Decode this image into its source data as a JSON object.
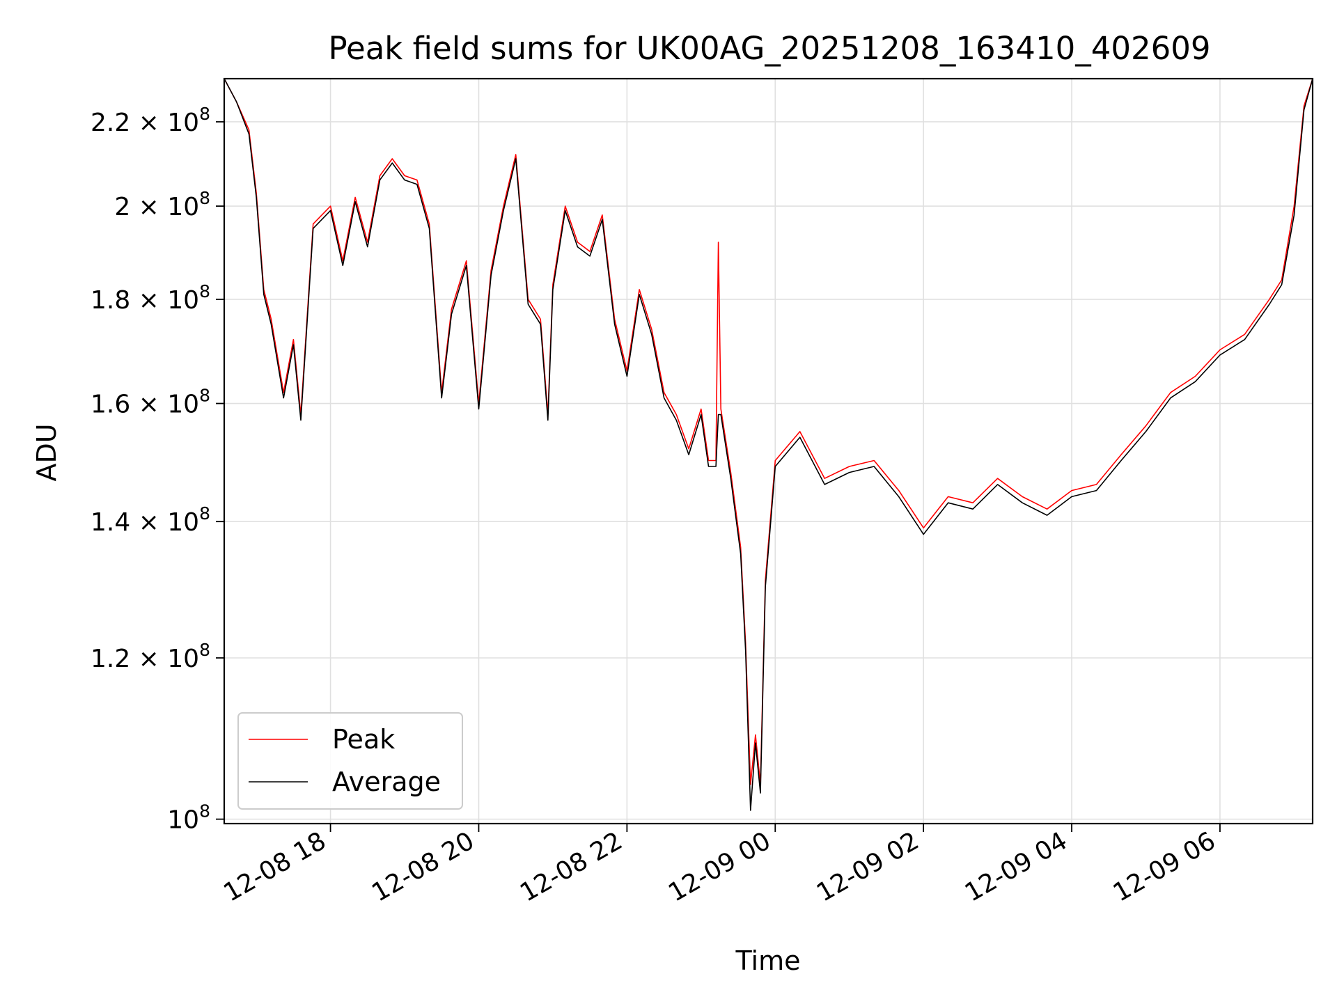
{
  "chart_data": {
    "type": "line",
    "title": "Peak field sums for UK00AG_20251208_163410_402609",
    "xlabel": "Time",
    "ylabel": "ADU",
    "yscale": "log",
    "ylim": [
      99500000,
      231000000
    ],
    "xlim": [
      "2025-12-08 16:34",
      "2025-12-09 07:15"
    ],
    "grid": true,
    "legend_position": "lower-left",
    "x_ticks": [
      {
        "value": "2025-12-08 18:00",
        "label": "12-08 18"
      },
      {
        "value": "2025-12-08 20:00",
        "label": "12-08 20"
      },
      {
        "value": "2025-12-08 22:00",
        "label": "12-08 22"
      },
      {
        "value": "2025-12-09 00:00",
        "label": "12-09 00"
      },
      {
        "value": "2025-12-09 02:00",
        "label": "12-09 02"
      },
      {
        "value": "2025-12-09 04:00",
        "label": "12-09 04"
      },
      {
        "value": "2025-12-09 06:00",
        "label": "12-09 06"
      }
    ],
    "y_ticks": [
      {
        "value": 100000000,
        "mantissa": "",
        "exponent": "8"
      },
      {
        "value": 120000000,
        "mantissa": "1.2",
        "exponent": "8"
      },
      {
        "value": 140000000,
        "mantissa": "1.4",
        "exponent": "8"
      },
      {
        "value": 160000000,
        "mantissa": "1.6",
        "exponent": "8"
      },
      {
        "value": 180000000,
        "mantissa": "1.8",
        "exponent": "8"
      },
      {
        "value": 200000000,
        "mantissa": "2",
        "exponent": "8"
      },
      {
        "value": 220000000,
        "mantissa": "2.2",
        "exponent": "8"
      }
    ],
    "series": [
      {
        "name": "Peak",
        "color": "#ff0000",
        "x": [
          "2025-12-08 16:34",
          "2025-12-08 16:44",
          "2025-12-08 16:54",
          "2025-12-08 17:00",
          "2025-12-08 17:06",
          "2025-12-08 17:12",
          "2025-12-08 17:22",
          "2025-12-08 17:30",
          "2025-12-08 17:36",
          "2025-12-08 17:46",
          "2025-12-08 18:00",
          "2025-12-08 18:10",
          "2025-12-08 18:20",
          "2025-12-08 18:30",
          "2025-12-08 18:40",
          "2025-12-08 18:50",
          "2025-12-08 19:00",
          "2025-12-08 19:10",
          "2025-12-08 19:20",
          "2025-12-08 19:30",
          "2025-12-08 19:38",
          "2025-12-08 19:50",
          "2025-12-08 20:00",
          "2025-12-08 20:10",
          "2025-12-08 20:20",
          "2025-12-08 20:30",
          "2025-12-08 20:40",
          "2025-12-08 20:50",
          "2025-12-08 20:56",
          "2025-12-08 21:00",
          "2025-12-08 21:10",
          "2025-12-08 21:20",
          "2025-12-08 21:30",
          "2025-12-08 21:40",
          "2025-12-08 21:50",
          "2025-12-08 22:00",
          "2025-12-08 22:10",
          "2025-12-08 22:20",
          "2025-12-08 22:30",
          "2025-12-08 22:40",
          "2025-12-08 22:50",
          "2025-12-08 23:00",
          "2025-12-08 23:06",
          "2025-12-08 23:12",
          "2025-12-08 23:14",
          "2025-12-08 23:16",
          "2025-12-08 23:24",
          "2025-12-08 23:32",
          "2025-12-08 23:36",
          "2025-12-08 23:40",
          "2025-12-08 23:44",
          "2025-12-08 23:48",
          "2025-12-08 23:52",
          "2025-12-09 00:00",
          "2025-12-09 00:20",
          "2025-12-09 00:40",
          "2025-12-09 01:00",
          "2025-12-09 01:20",
          "2025-12-09 01:40",
          "2025-12-09 02:00",
          "2025-12-09 02:20",
          "2025-12-09 02:40",
          "2025-12-09 03:00",
          "2025-12-09 03:20",
          "2025-12-09 03:40",
          "2025-12-09 04:00",
          "2025-12-09 04:20",
          "2025-12-09 04:40",
          "2025-12-09 05:00",
          "2025-12-09 05:20",
          "2025-12-09 05:40",
          "2025-12-09 06:00",
          "2025-12-09 06:20",
          "2025-12-09 06:40",
          "2025-12-09 06:50",
          "2025-12-09 07:00",
          "2025-12-09 07:08",
          "2025-12-09 07:15"
        ],
        "values": [
          231000000,
          225000000,
          218000000,
          203000000,
          182000000,
          176000000,
          162000000,
          172000000,
          158000000,
          196000000,
          200000000,
          188000000,
          202000000,
          192000000,
          207000000,
          211000000,
          207000000,
          206000000,
          196000000,
          162000000,
          178000000,
          188000000,
          160000000,
          186000000,
          200000000,
          212000000,
          180000000,
          176000000,
          158000000,
          183000000,
          200000000,
          192000000,
          190000000,
          198000000,
          176000000,
          166000000,
          182000000,
          174000000,
          162000000,
          158000000,
          152000000,
          159000000,
          150000000,
          150000000,
          192000000,
          159000000,
          148000000,
          136000000,
          122000000,
          104000000,
          110000000,
          104000000,
          131000000,
          150000000,
          155000000,
          147000000,
          149000000,
          150000000,
          145000000,
          139000000,
          144000000,
          143000000,
          147000000,
          144000000,
          142000000,
          145000000,
          146000000,
          151000000,
          156000000,
          162000000,
          165000000,
          170000000,
          173000000,
          180000000,
          184000000,
          200000000,
          224000000,
          231000000
        ]
      },
      {
        "name": "Average",
        "color": "#000000",
        "x": [
          "2025-12-08 16:34",
          "2025-12-08 16:44",
          "2025-12-08 16:54",
          "2025-12-08 17:00",
          "2025-12-08 17:06",
          "2025-12-08 17:12",
          "2025-12-08 17:22",
          "2025-12-08 17:30",
          "2025-12-08 17:36",
          "2025-12-08 17:46",
          "2025-12-08 18:00",
          "2025-12-08 18:10",
          "2025-12-08 18:20",
          "2025-12-08 18:30",
          "2025-12-08 18:40",
          "2025-12-08 18:50",
          "2025-12-08 19:00",
          "2025-12-08 19:10",
          "2025-12-08 19:20",
          "2025-12-08 19:30",
          "2025-12-08 19:38",
          "2025-12-08 19:50",
          "2025-12-08 20:00",
          "2025-12-08 20:10",
          "2025-12-08 20:20",
          "2025-12-08 20:30",
          "2025-12-08 20:40",
          "2025-12-08 20:50",
          "2025-12-08 20:56",
          "2025-12-08 21:00",
          "2025-12-08 21:10",
          "2025-12-08 21:20",
          "2025-12-08 21:30",
          "2025-12-08 21:40",
          "2025-12-08 21:50",
          "2025-12-08 22:00",
          "2025-12-08 22:10",
          "2025-12-08 22:20",
          "2025-12-08 22:30",
          "2025-12-08 22:40",
          "2025-12-08 22:50",
          "2025-12-08 23:00",
          "2025-12-08 23:06",
          "2025-12-08 23:12",
          "2025-12-08 23:14",
          "2025-12-08 23:16",
          "2025-12-08 23:24",
          "2025-12-08 23:32",
          "2025-12-08 23:36",
          "2025-12-08 23:40",
          "2025-12-08 23:44",
          "2025-12-08 23:48",
          "2025-12-08 23:52",
          "2025-12-09 00:00",
          "2025-12-09 00:20",
          "2025-12-09 00:40",
          "2025-12-09 01:00",
          "2025-12-09 01:20",
          "2025-12-09 01:40",
          "2025-12-09 02:00",
          "2025-12-09 02:20",
          "2025-12-09 02:40",
          "2025-12-09 03:00",
          "2025-12-09 03:20",
          "2025-12-09 03:40",
          "2025-12-09 04:00",
          "2025-12-09 04:20",
          "2025-12-09 04:40",
          "2025-12-09 05:00",
          "2025-12-09 05:20",
          "2025-12-09 05:40",
          "2025-12-09 06:00",
          "2025-12-09 06:20",
          "2025-12-09 06:40",
          "2025-12-09 06:50",
          "2025-12-09 07:00",
          "2025-12-09 07:08",
          "2025-12-09 07:15"
        ],
        "values": [
          231000000,
          225000000,
          217000000,
          202000000,
          181000000,
          175000000,
          161000000,
          171000000,
          157000000,
          195000000,
          199000000,
          187000000,
          201000000,
          191000000,
          206000000,
          210000000,
          206000000,
          205000000,
          195000000,
          161000000,
          177000000,
          187000000,
          159000000,
          185000000,
          199000000,
          211000000,
          179000000,
          175000000,
          157000000,
          182000000,
          199000000,
          191000000,
          189000000,
          197000000,
          175000000,
          165000000,
          181000000,
          173000000,
          161000000,
          157000000,
          151000000,
          158000000,
          149000000,
          149000000,
          158000000,
          158000000,
          147000000,
          135000000,
          121000000,
          101000000,
          109000000,
          103000000,
          130000000,
          149000000,
          154000000,
          146000000,
          148000000,
          149000000,
          144000000,
          138000000,
          143000000,
          142000000,
          146000000,
          143000000,
          141000000,
          144000000,
          145000000,
          150000000,
          155000000,
          161000000,
          164000000,
          169000000,
          172000000,
          179000000,
          183000000,
          198000000,
          223000000,
          231000000
        ]
      }
    ]
  }
}
